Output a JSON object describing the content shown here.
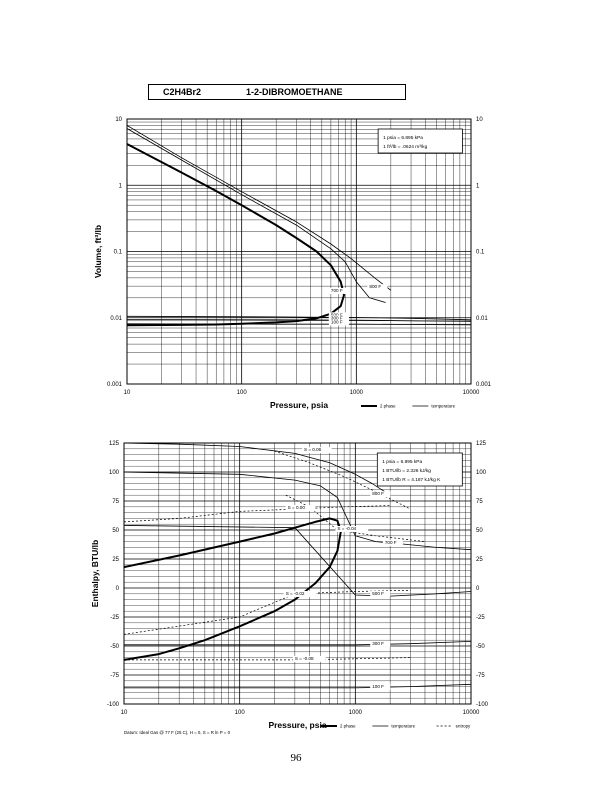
{
  "header": {
    "formula": "C2H4Br2",
    "name": "1-2-DIBROMOETHANE"
  },
  "page_number": "96",
  "chart_data": [
    {
      "type": "line",
      "xscale": "log",
      "yscale": "log",
      "xlim": [
        10,
        10000
      ],
      "ylim": [
        0.001,
        10
      ],
      "xlabel": "Pressure,  psia",
      "ylabel": "Volume, ft^3/lb",
      "x_ticks": [
        "10",
        "100",
        "1000",
        "10000"
      ],
      "y_ticks": [
        "0.001",
        "0.01",
        "0.1",
        "1",
        "10"
      ],
      "y_ticks_right": [
        "0.001",
        "0.01",
        "0.1",
        "1",
        "10"
      ],
      "conversion_box": [
        "1 psia  =  6.895 kPa",
        "1 ft^3/lb  =  .0624 m^3/kg"
      ],
      "legend": [
        "2 phase",
        "temperature"
      ],
      "series": [
        {
          "name": "2 phase",
          "x": [
            10,
            30,
            60,
            100,
            200,
            300,
            450,
            600,
            730,
            780,
            730,
            600,
            450,
            300,
            200,
            100,
            60,
            30,
            10
          ],
          "y": [
            4.2,
            1.55,
            0.82,
            0.5,
            0.25,
            0.16,
            0.1,
            0.062,
            0.035,
            0.022,
            0.015,
            0.0115,
            0.0098,
            0.0089,
            0.0085,
            0.0081,
            0.0079,
            0.0078,
            0.0077
          ]
        },
        {
          "name": "800 F",
          "x": [
            10,
            30,
            100,
            300,
            600,
            900,
            1200,
            1500,
            2000
          ],
          "y": [
            8,
            2.6,
            0.8,
            0.28,
            0.13,
            0.078,
            0.052,
            0.038,
            0.026
          ]
        },
        {
          "name": "700 F",
          "x": [
            10,
            30,
            100,
            300,
            600,
            800,
            1000,
            1300,
            1800
          ],
          "y": [
            7.2,
            2.4,
            0.72,
            0.25,
            0.11,
            0.07,
            0.035,
            0.02,
            0.017
          ]
        },
        {
          "name": "500 F",
          "x": [
            10,
            200,
            1000,
            3000,
            10000
          ],
          "y": [
            0.0105,
            0.0103,
            0.0101,
            0.0098,
            0.0093
          ]
        },
        {
          "name": "300 F",
          "x": [
            10,
            200,
            1000,
            3000,
            10000
          ],
          "y": [
            0.0094,
            0.0093,
            0.0092,
            0.009,
            0.0088
          ]
        },
        {
          "name": "100 F",
          "x": [
            10,
            200,
            1000,
            3000,
            10000
          ],
          "y": [
            0.0081,
            0.008,
            0.008,
            0.0079,
            0.0078
          ]
        }
      ],
      "annotations": [
        "800 F",
        "700 F",
        "500 F",
        "300 F",
        "100 F"
      ]
    },
    {
      "type": "line",
      "xscale": "log",
      "xlim": [
        10,
        10000
      ],
      "ylim": [
        -100,
        125
      ],
      "xlabel": "Pressure,  psia",
      "ylabel": "Enthalpy, BTU/lb",
      "x_ticks": [
        "10",
        "100",
        "1000",
        "10000"
      ],
      "y_ticks": [
        "-100",
        "-75",
        "-50",
        "-25",
        "0",
        "25",
        "50",
        "75",
        "100",
        "125"
      ],
      "y_ticks_right": [
        "-100",
        "-75",
        "-50",
        "-25",
        "0",
        "25",
        "50",
        "75",
        "100",
        "125"
      ],
      "conversion_box": [
        "1 psia  =  6.895 kPa",
        "1 BTU/lb  =  2.326 kJ/kg",
        "1 BTU/lb R  =  4.187 kJ/kg K"
      ],
      "legend": [
        "2 phase",
        "temperature",
        "entropy"
      ],
      "footnote": "Datum: Ideal Gas @ 77 F (25 C),  H = 0,  S = R ln P = 0",
      "series": [
        {
          "name": "2 phase",
          "x": [
            10,
            30,
            100,
            200,
            300,
            450,
            600,
            700,
            750,
            700,
            600,
            450,
            300,
            200,
            100,
            50,
            30,
            20,
            10
          ],
          "y": [
            18,
            28,
            40,
            47,
            52,
            57,
            60,
            58,
            49,
            32,
            18,
            4,
            -10,
            -20,
            -33,
            -45,
            -52,
            -57,
            -62
          ]
        },
        {
          "name": "800 F",
          "x": [
            10,
            30,
            100,
            300,
            600,
            1000,
            1400,
            2000
          ],
          "y": [
            125,
            124,
            122,
            116,
            108,
            98,
            90,
            80
          ]
        },
        {
          "name": "700 F",
          "x": [
            10,
            100,
            300,
            500,
            700,
            1000,
            1500,
            2500,
            5000,
            10000
          ],
          "y": [
            100,
            98,
            93,
            88,
            78,
            45,
            40,
            38,
            35,
            33
          ]
        },
        {
          "name": "500 F",
          "x": [
            10,
            300,
            1000,
            2000,
            5000,
            10000
          ],
          "y": [
            54,
            52,
            -6,
            -7,
            -5,
            -3
          ]
        },
        {
          "name": "300 F",
          "x": [
            10,
            1000,
            3000,
            10000
          ],
          "y": [
            -49,
            -49,
            -48,
            -46
          ]
        },
        {
          "name": "100 F",
          "x": [
            10,
            1000,
            3000,
            10000
          ],
          "y": [
            -86,
            -86,
            -85,
            -83
          ]
        },
        {
          "name": "S = 0.06",
          "x": [
            200,
            400,
            800,
            1500,
            3000
          ],
          "y": [
            118,
            108,
            96,
            83,
            68
          ]
        },
        {
          "name": "S = 0.00",
          "x": [
            10,
            30,
            100,
            300,
            800,
            2000
          ],
          "y": [
            57,
            60,
            66,
            68,
            70,
            71
          ]
        },
        {
          "name": "S = -0.04",
          "x": [
            250,
            400,
            700,
            1500,
            4000
          ],
          "y": [
            80,
            70,
            50,
            45,
            40
          ]
        },
        {
          "name": "S = -0.02",
          "x": [
            10,
            100,
            300,
            1000,
            3000
          ],
          "y": [
            -40,
            -25,
            -5,
            -3,
            -2
          ]
        },
        {
          "name": "S = -0.08",
          "x": [
            10,
            100,
            300,
            1000,
            3000
          ],
          "y": [
            -62,
            -62,
            -62,
            -61,
            -60
          ]
        }
      ],
      "annotations": [
        "S = 0.06",
        "800 F",
        "S = 0.00",
        "S = -0.04",
        "700 F",
        "S = -0.02",
        "500 F",
        "300 F",
        "S = -0.08",
        "100 F"
      ]
    }
  ]
}
